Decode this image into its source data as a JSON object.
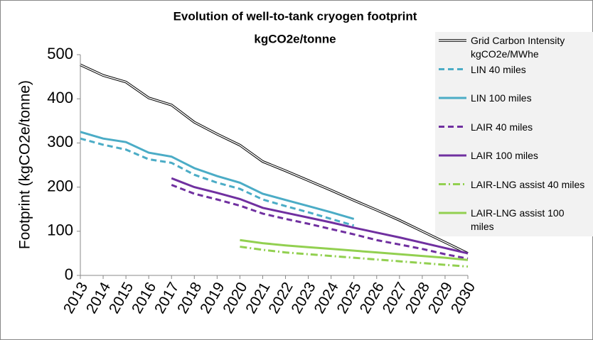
{
  "chart_data": {
    "type": "line",
    "title": [
      "Evolution of well-to-tank cryogen footprint",
      "kgCO2e/tonne"
    ],
    "ylabel": "Footprint (kgCO2e/tonne)",
    "x": [
      2013,
      2014,
      2015,
      2016,
      2017,
      2018,
      2019,
      2020,
      2021,
      2022,
      2023,
      2024,
      2025,
      2026,
      2027,
      2028,
      2029,
      2030
    ],
    "xlim": [
      2013,
      2030
    ],
    "xticks": [
      2013,
      2014,
      2015,
      2016,
      2017,
      2018,
      2019,
      2020,
      2021,
      2022,
      2023,
      2024,
      2025,
      2026,
      2027,
      2028,
      2029,
      2030
    ],
    "ylim": [
      0,
      500
    ],
    "yticks": [
      0,
      100,
      200,
      300,
      400,
      500
    ],
    "grid": false,
    "legend": "right",
    "series": [
      {
        "name": "Grid Carbon Intensity kgCO2e/MWhe",
        "color": "#000000",
        "style": "double",
        "values": [
          477,
          453,
          438,
          402,
          386,
          347,
          320,
          295,
          258,
          237,
          215,
          193,
          170,
          148,
          125,
          100,
          75,
          50
        ]
      },
      {
        "name": "LIN 40 miles",
        "color": "#4bacc6",
        "style": "dashed",
        "values": [
          310,
          296,
          285,
          263,
          255,
          228,
          210,
          196,
          172,
          157,
          143,
          128,
          113,
          null,
          null,
          null,
          null,
          null
        ]
      },
      {
        "name": "LIN 100 miles",
        "color": "#4bacc6",
        "style": "solid",
        "values": [
          325,
          310,
          302,
          278,
          269,
          243,
          225,
          210,
          185,
          171,
          157,
          143,
          128,
          null,
          null,
          null,
          null,
          null
        ]
      },
      {
        "name": "LAIR 40 miles",
        "color": "#7030a0",
        "style": "dashed",
        "values": [
          null,
          null,
          null,
          null,
          205,
          185,
          172,
          158,
          140,
          128,
          117,
          105,
          93,
          80,
          70,
          60,
          48,
          38
        ]
      },
      {
        "name": "LAIR 100 miles",
        "color": "#7030a0",
        "style": "solid",
        "values": [
          null,
          null,
          null,
          null,
          220,
          200,
          187,
          173,
          153,
          142,
          131,
          120,
          108,
          97,
          86,
          74,
          62,
          50
        ]
      },
      {
        "name": "LAIR-LNG assist 40 miles",
        "color": "#92d050",
        "style": "dashdot",
        "values": [
          null,
          null,
          null,
          null,
          null,
          null,
          null,
          65,
          58,
          52,
          48,
          44,
          40,
          36,
          32,
          28,
          24,
          20
        ]
      },
      {
        "name": "LAIR-LNG assist 100 miles",
        "color": "#92d050",
        "style": "solid",
        "values": [
          null,
          null,
          null,
          null,
          null,
          null,
          null,
          80,
          73,
          68,
          64,
          60,
          56,
          52,
          48,
          44,
          40,
          35
        ]
      }
    ]
  }
}
